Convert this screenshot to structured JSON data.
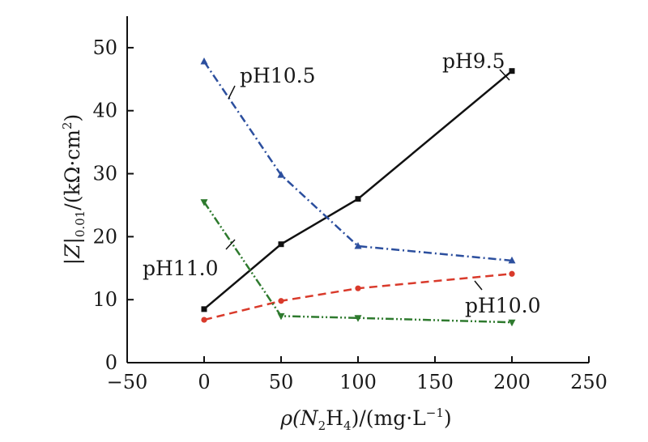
{
  "chart_data": {
    "type": "line",
    "xlabel": {
      "main": "ρ(N",
      "sub1": "2",
      "mid": "H",
      "sub2": "4",
      "end": ")/(mg·L",
      "sup": "−1",
      "close": ")"
    },
    "ylabel": {
      "main": "|Z|",
      "sub": "0.01",
      "end": "/(kΩ·cm",
      "sup": "2",
      "close": ")"
    },
    "xlim": [
      -50,
      250
    ],
    "ylim": [
      0,
      55
    ],
    "x_ticks": [
      -50,
      0,
      50,
      100,
      150,
      200,
      250
    ],
    "y_ticks": [
      0,
      10,
      20,
      30,
      40,
      50
    ],
    "x_tick_labels": [
      "−50",
      "0",
      "50",
      "100",
      "150",
      "200",
      "250"
    ],
    "y_tick_labels": [
      "0",
      "10",
      "20",
      "30",
      "40",
      "50"
    ],
    "grid": false,
    "legend": "inline labels",
    "series": [
      {
        "name": "pH9.5",
        "color": "#111111",
        "dash": "solid",
        "marker": "square",
        "x": [
          0,
          50,
          100,
          200
        ],
        "y": [
          8.5,
          18.8,
          26.0,
          46.3
        ]
      },
      {
        "name": "pH10.0",
        "color": "#d93a2b",
        "dash": "dashed",
        "marker": "circle",
        "x": [
          0,
          50,
          100,
          200
        ],
        "y": [
          6.8,
          9.8,
          11.8,
          14.1
        ]
      },
      {
        "name": "pH10.5",
        "color": "#2c4f9e",
        "dash": "dashdot",
        "marker": "triangle-up",
        "x": [
          0,
          50,
          100,
          200
        ],
        "y": [
          47.8,
          29.8,
          18.5,
          16.2
        ]
      },
      {
        "name": "pH11.0",
        "color": "#2e7a2e",
        "dash": "dashdotdot",
        "marker": "triangle-down",
        "x": [
          0,
          50,
          100,
          200
        ],
        "y": [
          25.5,
          7.4,
          7.1,
          6.4
        ]
      }
    ]
  }
}
